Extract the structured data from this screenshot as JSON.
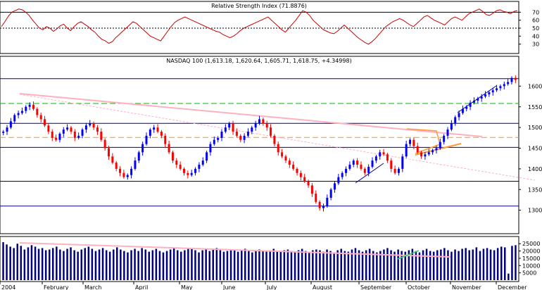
{
  "chart_data": [
    {
      "type": "line",
      "title": "Relative Strength Index (71.8876)",
      "ylim": [
        20,
        80
      ],
      "yticks": [
        30,
        40,
        50,
        60,
        70
      ],
      "reference_lines": [
        {
          "y": 70,
          "style": "solid"
        },
        {
          "y": 50,
          "style": "dashed"
        }
      ],
      "line_color": "#cc0000",
      "series": [
        {
          "values": [
            52,
            58,
            65,
            70,
            72,
            74,
            73,
            70,
            66,
            60,
            55,
            50,
            48,
            52,
            50,
            46,
            49,
            53,
            55,
            50,
            47,
            52,
            56,
            58,
            55,
            52,
            48,
            45,
            40,
            36,
            34,
            31,
            33,
            38,
            42,
            46,
            50,
            54,
            58,
            56,
            52,
            48,
            44,
            40,
            38,
            36,
            34,
            40,
            46,
            52,
            57,
            60,
            62,
            64,
            62,
            60,
            58,
            56,
            54,
            52,
            50,
            48,
            46,
            45,
            42,
            40,
            38,
            40,
            43,
            47,
            50,
            52,
            54,
            56,
            58,
            60,
            62,
            64,
            60,
            56,
            52,
            48,
            45,
            50,
            55,
            60,
            66,
            72,
            70,
            66,
            60,
            56,
            52,
            48,
            46,
            44,
            43,
            46,
            50,
            54,
            50,
            46,
            42,
            38,
            35,
            32,
            30,
            33,
            37,
            42,
            47,
            52,
            55,
            58,
            60,
            62,
            60,
            57,
            54,
            52,
            56,
            60,
            64,
            66,
            63,
            60,
            58,
            56,
            54,
            58,
            62,
            64,
            62,
            60,
            64,
            68,
            70,
            72,
            74,
            71,
            67,
            66,
            69,
            72,
            73,
            71,
            70,
            68,
            71,
            72
          ]
        }
      ]
    },
    {
      "type": "candlestick",
      "title": "NASDAQ 100 (1,613.18, 1,620.64, 1,605.71, 1,618.75, +4.34998)",
      "ylim": [
        1250,
        1650
      ],
      "yticks": [
        1300,
        1350,
        1400,
        1450,
        1500,
        1550,
        1600
      ],
      "x_labels": [
        "2004",
        "February",
        "March",
        "April",
        "May",
        "June",
        "July",
        "August",
        "September",
        "October",
        "November",
        "December"
      ],
      "horizontal_lines": [
        {
          "y": 1618,
          "color": "#000080",
          "style": "solid"
        },
        {
          "y": 1558,
          "color": "#00bb00",
          "style": "dashed"
        },
        {
          "y": 1510,
          "color": "#000080",
          "style": "solid"
        },
        {
          "y": 1476,
          "color": "#ff9900",
          "style": "dashed"
        },
        {
          "y": 1452,
          "color": "#000080",
          "style": "solid"
        },
        {
          "y": 1370,
          "color": "#000080",
          "style": "solid"
        },
        {
          "y": 1310,
          "color": "#000080",
          "style": "solid"
        }
      ],
      "colors": {
        "up": "#0000ff",
        "down": "#ff0000"
      },
      "series": [
        {
          "values": [
            1490,
            1500,
            1515,
            1530,
            1535,
            1540,
            1550,
            1555,
            1545,
            1530,
            1520,
            1505,
            1490,
            1475,
            1470,
            1485,
            1495,
            1500,
            1490,
            1475,
            1480,
            1495,
            1505,
            1510,
            1500,
            1490,
            1470,
            1450,
            1430,
            1415,
            1400,
            1390,
            1380,
            1385,
            1400,
            1420,
            1440,
            1460,
            1480,
            1495,
            1500,
            1490,
            1480,
            1460,
            1440,
            1420,
            1410,
            1400,
            1390,
            1385,
            1390,
            1400,
            1410,
            1420,
            1440,
            1460,
            1470,
            1475,
            1490,
            1500,
            1510,
            1490,
            1480,
            1470,
            1480,
            1490,
            1500,
            1510,
            1520,
            1510,
            1500,
            1480,
            1460,
            1440,
            1430,
            1420,
            1410,
            1400,
            1390,
            1380,
            1370,
            1360,
            1340,
            1320,
            1305,
            1310,
            1330,
            1350,
            1365,
            1380,
            1390,
            1400,
            1410,
            1420,
            1410,
            1400,
            1390,
            1405,
            1420,
            1430,
            1440,
            1435,
            1420,
            1400,
            1390,
            1400,
            1430,
            1460,
            1470,
            1455,
            1440,
            1430,
            1435,
            1440,
            1445,
            1450,
            1465,
            1480,
            1495,
            1510,
            1525,
            1535,
            1545,
            1550,
            1560,
            1565,
            1570,
            1575,
            1580,
            1585,
            1590,
            1595,
            1600,
            1605,
            1610,
            1620,
            1615
          ]
        }
      ]
    },
    {
      "type": "bar",
      "title": "",
      "ylim": [
        0,
        28000
      ],
      "yticks": [
        5000,
        10000,
        15000,
        20000,
        25000
      ],
      "bar_color": "#000080",
      "series": [
        {
          "values": [
            26000,
            24500,
            23000,
            22000,
            25000,
            23500,
            21000,
            22500,
            24000,
            23000,
            21500,
            22000,
            20500,
            21000,
            22000,
            23000,
            21000,
            20000,
            21500,
            22500,
            20500,
            19500,
            21000,
            22000,
            23000,
            21500,
            20000,
            21000,
            22000,
            20500,
            19500,
            21000,
            22500,
            21000,
            20000,
            19000,
            20500,
            21500,
            20000,
            22000,
            21000,
            19500,
            20500,
            21500,
            20000,
            19000,
            20000,
            21000,
            22000,
            20500,
            19500,
            20500,
            21500,
            22000,
            20500,
            19000,
            20500,
            21500,
            20000,
            21000,
            22000,
            20500,
            19500,
            20000,
            21000,
            20500,
            19500,
            20500,
            21500,
            20000,
            19000,
            20000,
            21000,
            20500,
            19500,
            20500,
            21500,
            20000,
            19500,
            20500,
            21000,
            20000,
            19000,
            20500,
            21500,
            20000,
            19500,
            20500,
            21000,
            20500,
            19500,
            21000,
            20000,
            19000,
            20500,
            21500,
            20000,
            19500,
            21000,
            22000,
            20500,
            19500,
            20500,
            21500,
            20000,
            19000,
            20000,
            21000,
            22000,
            20500,
            19500,
            21000,
            20000,
            19500,
            20500,
            21500,
            20000,
            19000,
            20500,
            21500,
            20000,
            19500,
            20500,
            21000,
            22000,
            20500,
            19500,
            21000,
            20000,
            21500,
            22000,
            20500,
            21000,
            22500,
            20000,
            21500,
            22000,
            21000,
            20500,
            22000,
            23000,
            22500,
            4500,
            23500,
            24000
          ]
        }
      ]
    }
  ]
}
